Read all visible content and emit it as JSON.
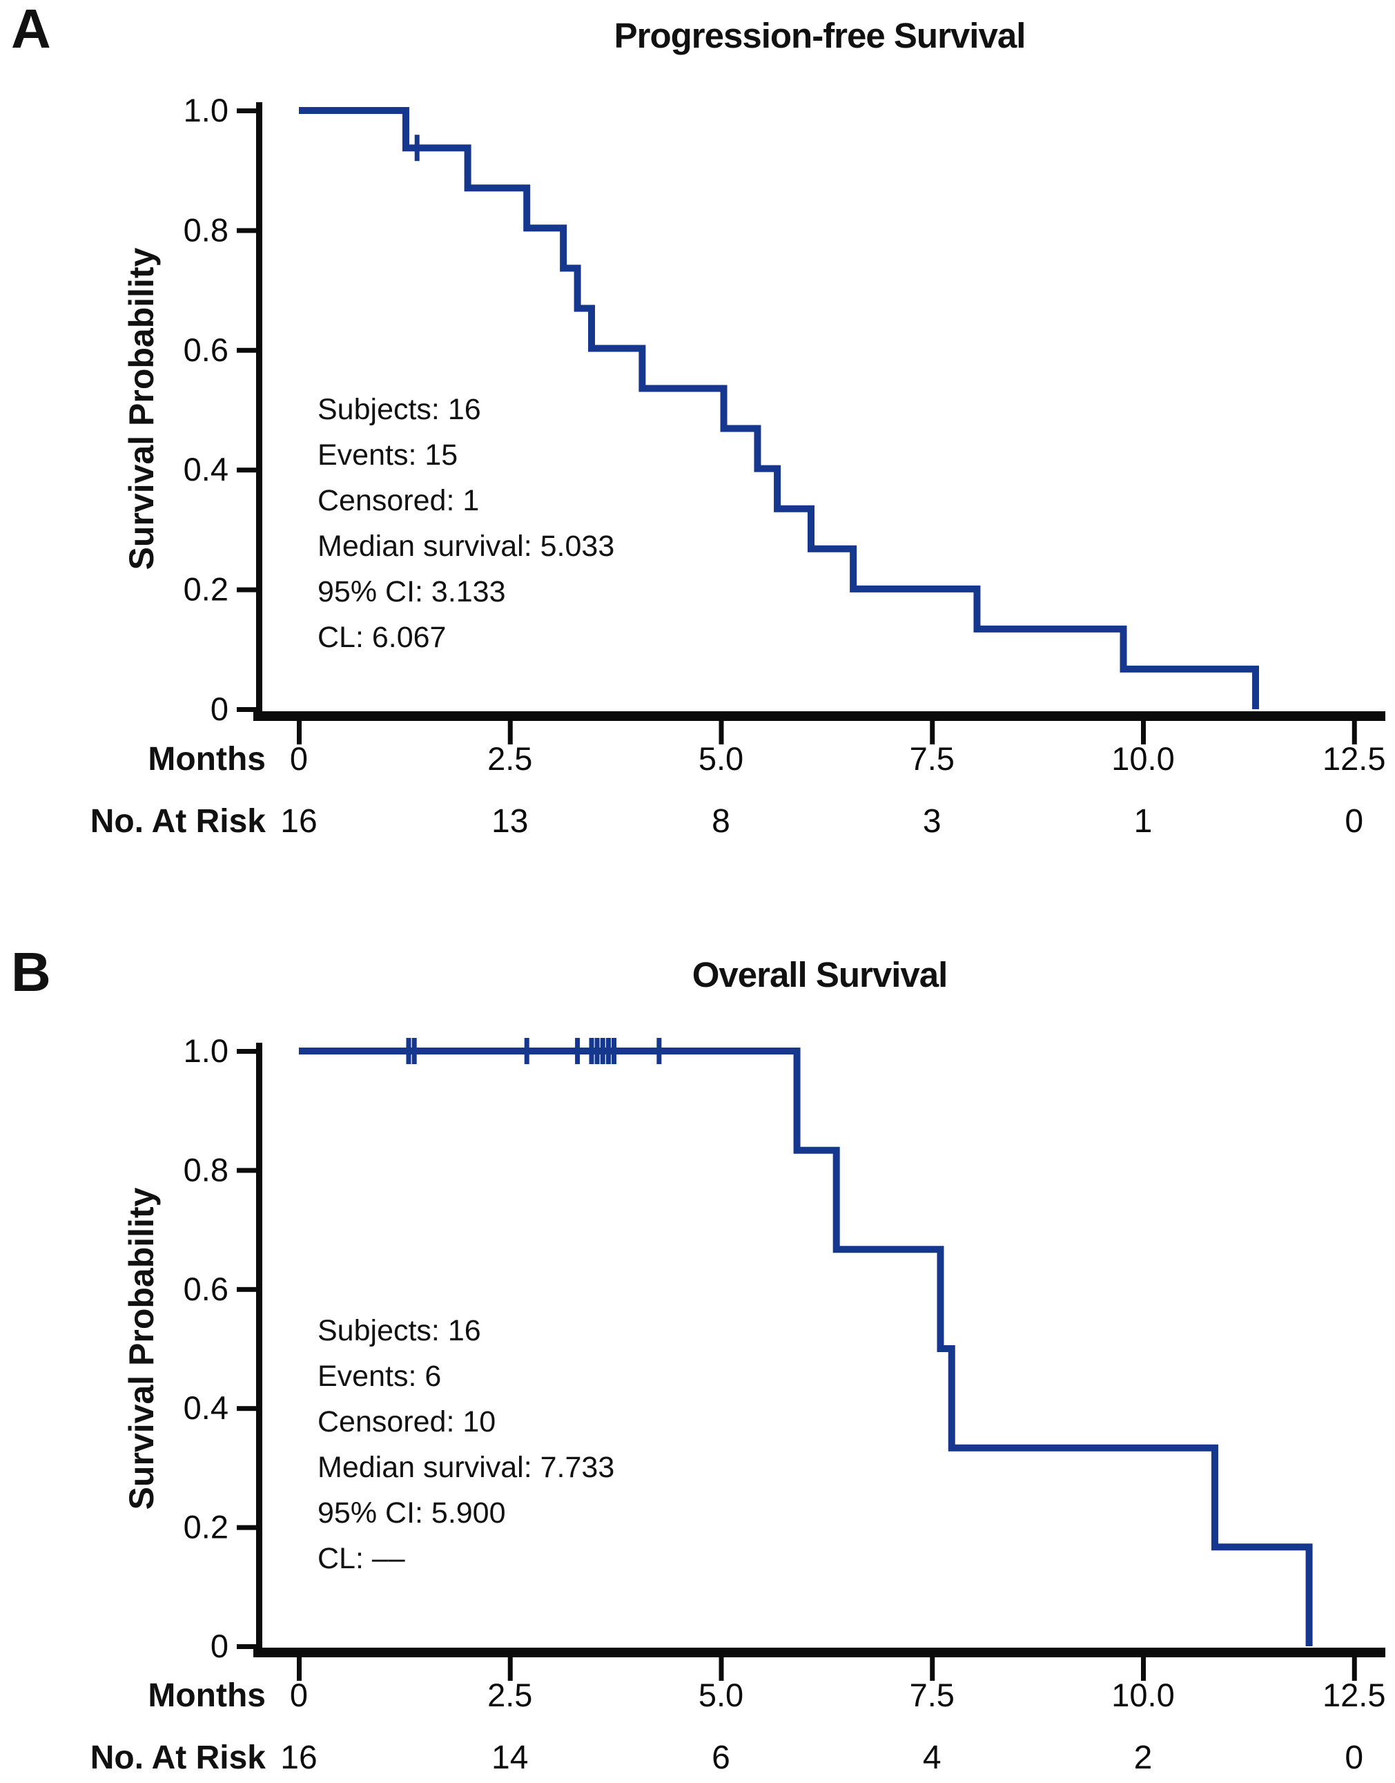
{
  "figure": {
    "background": "#ffffff",
    "curve_color": "#15388e",
    "axis_color": "#0b0b0b",
    "panel_letters": [
      "A",
      "B"
    ]
  },
  "chart_data": [
    {
      "panel_label": "A",
      "type": "line",
      "subtype": "kaplan-meier-step-curve",
      "title": "Progression-free Survival",
      "xlabel": "Months",
      "ylabel": "Survival Probability",
      "xlim": [
        0,
        12.5
      ],
      "ylim": [
        0,
        1.0
      ],
      "grid": false,
      "x_tick_values": [
        0,
        2.5,
        5.0,
        7.5,
        10.0,
        12.5
      ],
      "x_tick_labels": [
        "0",
        "2.5",
        "5.0",
        "7.5",
        "10.0",
        "12.5"
      ],
      "y_tick_values": [
        1.0,
        0.8,
        0.6,
        0.4,
        0.2,
        0
      ],
      "y_tick_labels": [
        "1.0",
        "0.8",
        "0.6",
        "0.4",
        "0.2",
        "0"
      ],
      "steps": [
        [
          0,
          1.0
        ],
        [
          1.267,
          0.9375
        ],
        [
          2.0,
          0.8705
        ],
        [
          2.7,
          0.8036
        ],
        [
          3.133,
          0.7366
        ],
        [
          3.3,
          0.6696
        ],
        [
          3.467,
          0.6027
        ],
        [
          4.067,
          0.5357
        ],
        [
          5.033,
          0.4688
        ],
        [
          5.433,
          0.4018
        ],
        [
          5.667,
          0.3348
        ],
        [
          6.067,
          0.2679
        ],
        [
          6.567,
          0.2009
        ],
        [
          8.033,
          0.1339
        ],
        [
          9.767,
          0.067
        ],
        [
          11.333,
          0
        ]
      ],
      "censor_marks": [
        [
          1.4,
          0.9375
        ]
      ],
      "annotation_lines": [
        "Subjects: 16",
        "Events: 15",
        "Censored: 1",
        "Median survival: 5.033",
        "95% CI: 3.133",
        "CL: 6.067"
      ],
      "at_risk_label": "No. At Risk",
      "at_risk_values": [
        "16",
        "13",
        "8",
        "3",
        "1",
        "0"
      ]
    },
    {
      "panel_label": "B",
      "type": "line",
      "subtype": "kaplan-meier-step-curve",
      "title": "Overall Survival",
      "xlabel": "Months",
      "ylabel": "Survival Probability",
      "xlim": [
        0,
        12.5
      ],
      "ylim": [
        0,
        1.0
      ],
      "grid": false,
      "x_tick_values": [
        0,
        2.5,
        5.0,
        7.5,
        10.0,
        12.5
      ],
      "x_tick_labels": [
        "0",
        "2.5",
        "5.0",
        "7.5",
        "10.0",
        "12.5"
      ],
      "y_tick_values": [
        1.0,
        0.8,
        0.6,
        0.4,
        0.2,
        0
      ],
      "y_tick_labels": [
        "1.0",
        "0.8",
        "0.6",
        "0.4",
        "0.2",
        "0"
      ],
      "steps": [
        [
          0,
          1.0
        ],
        [
          5.9,
          0.8333
        ],
        [
          6.367,
          0.6667
        ],
        [
          7.6,
          0.5
        ],
        [
          7.733,
          0.3333
        ],
        [
          10.85,
          0.1667
        ],
        [
          11.967,
          0
        ]
      ],
      "censor_marks": [
        [
          1.3,
          1.0
        ],
        [
          1.367,
          1.0
        ],
        [
          2.7,
          1.0
        ],
        [
          3.3,
          1.0
        ],
        [
          3.467,
          1.0
        ],
        [
          3.533,
          1.0
        ],
        [
          3.6,
          1.0
        ],
        [
          3.667,
          1.0
        ],
        [
          3.733,
          1.0
        ],
        [
          4.267,
          1.0
        ]
      ],
      "annotation_lines": [
        "Subjects: 16",
        "Events: 6",
        "Censored: 10",
        "Median survival: 7.733",
        "95% CI: 5.900",
        "CL: ––"
      ],
      "at_risk_label": "No. At Risk",
      "at_risk_values": [
        "16",
        "14",
        "6",
        "4",
        "2",
        "0"
      ]
    }
  ]
}
